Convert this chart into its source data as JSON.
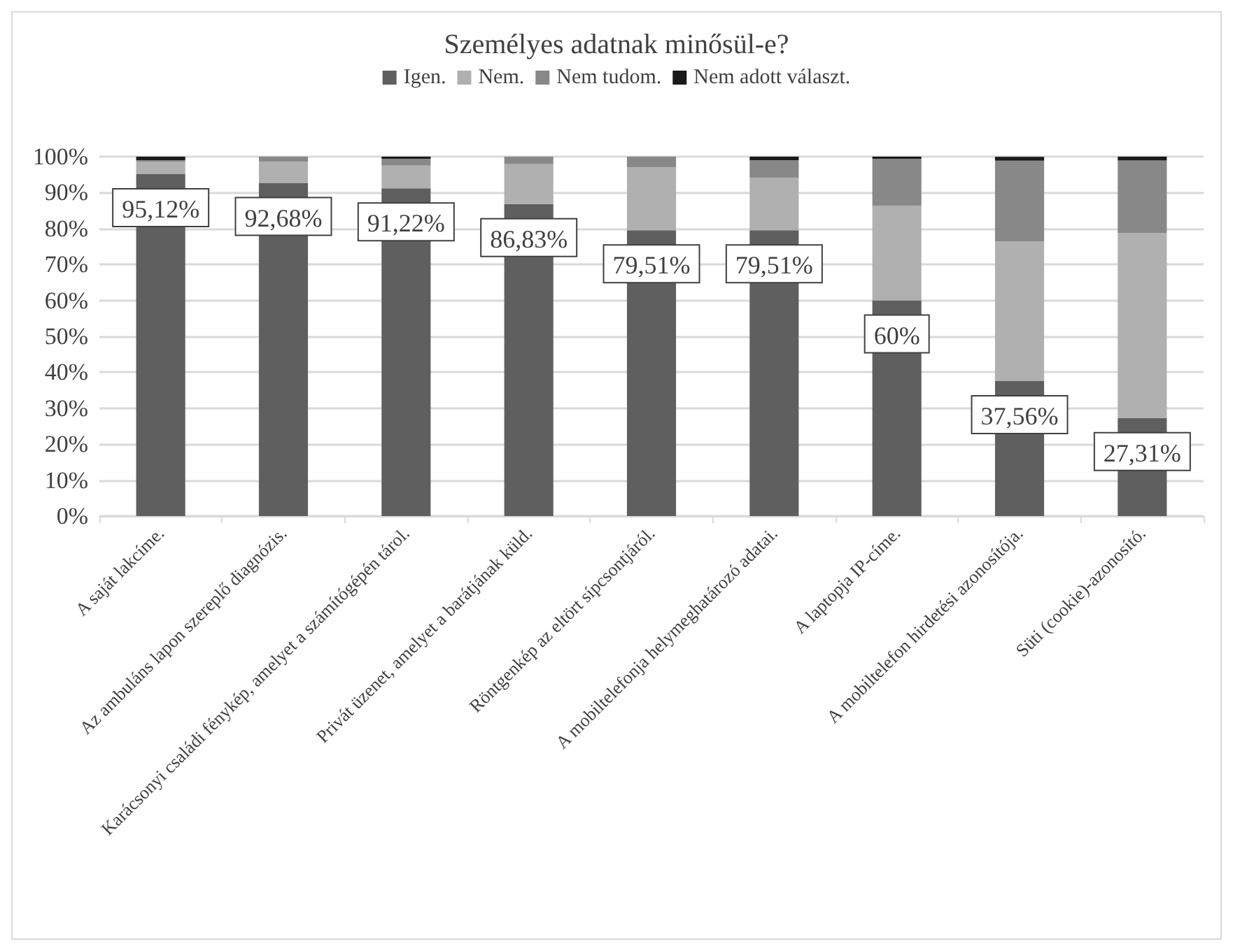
{
  "chart_data": {
    "type": "bar",
    "title": "Személyes adatnak minősül-e?",
    "stacked": true,
    "categories": [
      "A saját lakcíme.",
      "Az ambuláns lapon szereplő diagnózis.",
      "Karácsonyi családi fénykép, amelyet a számítógépén tárol.",
      "Privát üzenet, amelyet a barátjának küld.",
      "Röntgenkép az eltört sípcsontjáról.",
      "A mobiltelefonja helymeghatározó adatai.",
      "A laptopja IP-címe.",
      "A mobiltelefon hirdetési azonosítója.",
      "Süti (cookie)-azonosító."
    ],
    "series": [
      {
        "name": "Igen.",
        "color": "#5f5f5f",
        "values": [
          95.12,
          92.68,
          91.22,
          86.83,
          79.51,
          79.51,
          60,
          37.56,
          27.31
        ],
        "value_labels": [
          "95,12%",
          "92,68%",
          "91,22%",
          "86,83%",
          "79,51%",
          "79,51%",
          "60%",
          "37,56%",
          "27,31%"
        ]
      },
      {
        "name": "Nem.",
        "color": "#b0b0b0",
        "values": [
          3.4,
          5.9,
          6.3,
          11.1,
          17.5,
          14.6,
          26.3,
          38.9,
          51.5
        ]
      },
      {
        "name": "Nem tudom.",
        "color": "#888888",
        "values": [
          0.5,
          1.4,
          1.9,
          2.1,
          3.0,
          4.9,
          13.1,
          22.4,
          20.1
        ]
      },
      {
        "name": "Nem adott választ.",
        "color": "#1a1a1a",
        "values": [
          1.0,
          0,
          0.6,
          0,
          0,
          1.0,
          0.6,
          1.1,
          1.1
        ]
      }
    ],
    "ylim": [
      0,
      100
    ],
    "yticks": [
      {
        "value": 0,
        "label": "0%"
      },
      {
        "value": 10,
        "label": "10%"
      },
      {
        "value": 20,
        "label": "20%"
      },
      {
        "value": 30,
        "label": "30%"
      },
      {
        "value": 40,
        "label": "40%"
      },
      {
        "value": 50,
        "label": "50%"
      },
      {
        "value": 60,
        "label": "60%"
      },
      {
        "value": 70,
        "label": "70%"
      },
      {
        "value": 80,
        "label": "80%"
      },
      {
        "value": 90,
        "label": "90%"
      },
      {
        "value": 100,
        "label": "100%"
      }
    ],
    "grid": "y",
    "legend": "top"
  }
}
